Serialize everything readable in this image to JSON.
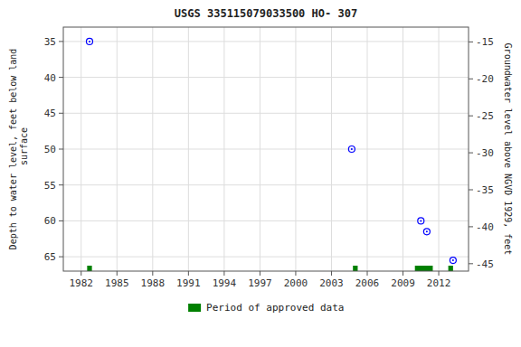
{
  "chart_data": {
    "type": "scatter",
    "title": "USGS 335115079033500 HO- 307",
    "ylabel": "Depth to water level, feet below land\n surface",
    "y2label": "Groundwater level above NGVD 1929, feet",
    "xlim": [
      1980.5,
      2014.5
    ],
    "xticks": [
      1982,
      1985,
      1988,
      1991,
      1994,
      1997,
      2000,
      2003,
      2006,
      2009,
      2012
    ],
    "ylim": [
      67,
      33
    ],
    "yticks": [
      35,
      40,
      45,
      50,
      55,
      60,
      65
    ],
    "y2lim": [
      -46,
      -13
    ],
    "y2ticks": [
      -15,
      -20,
      -25,
      -30,
      -35,
      -40,
      -45
    ],
    "grid": true,
    "legend": "bottom",
    "series": [
      {
        "type": "scatter",
        "marker": "circle",
        "color": "#0000ff",
        "x": [
          1982.7,
          2004.7,
          2010.5,
          2011.0,
          2013.2
        ],
        "values": [
          35.0,
          50.0,
          60.0,
          61.5,
          65.5
        ]
      },
      {
        "name": "Period of approved data",
        "type": "bar",
        "orientation": "horizontal",
        "color": "#008000",
        "starts": [
          1982.5,
          2004.8,
          2010.0,
          2012.8
        ],
        "widths": [
          0.4,
          0.4,
          1.5,
          0.4
        ]
      }
    ]
  }
}
